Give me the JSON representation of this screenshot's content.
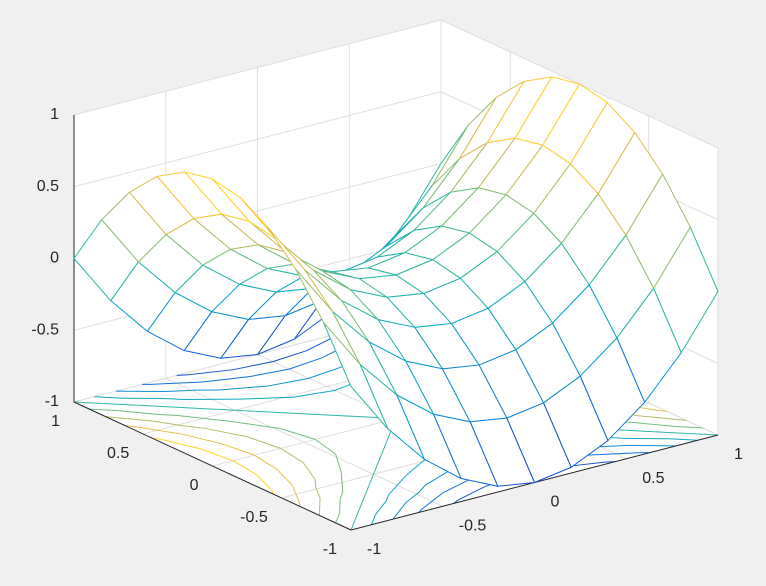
{
  "chart_data": {
    "type": "mesh",
    "x": [
      -1,
      -0.8,
      -0.6,
      -0.4,
      -0.2,
      0,
      0.2,
      0.4,
      0.6,
      0.8,
      1
    ],
    "y": [
      -1,
      -0.8,
      -0.6,
      -0.4,
      -0.2,
      0,
      0.2,
      0.4,
      0.6,
      0.8,
      1
    ],
    "z": [
      [
        0,
        -0.36,
        -0.64,
        -0.84,
        -0.96,
        -1,
        -0.96,
        -0.84,
        -0.64,
        -0.36,
        0
      ],
      [
        0.36,
        0,
        -0.28,
        -0.48,
        -0.6,
        -0.64,
        -0.6,
        -0.48,
        -0.28,
        0,
        0.36
      ],
      [
        0.64,
        0.28,
        0,
        -0.2,
        -0.32,
        -0.36,
        -0.32,
        -0.2,
        0,
        0.28,
        0.64
      ],
      [
        0.84,
        0.48,
        0.2,
        0,
        -0.12,
        -0.16,
        -0.12,
        0,
        0.2,
        0.48,
        0.84
      ],
      [
        0.96,
        0.6,
        0.32,
        0.12,
        0,
        -0.04,
        0,
        0.12,
        0.32,
        0.6,
        0.96
      ],
      [
        1,
        0.64,
        0.36,
        0.16,
        0.04,
        0,
        0.04,
        0.16,
        0.36,
        0.64,
        1
      ],
      [
        0.96,
        0.6,
        0.32,
        0.12,
        0,
        -0.04,
        0,
        0.12,
        0.32,
        0.6,
        0.96
      ],
      [
        0.84,
        0.48,
        0.2,
        0,
        -0.12,
        -0.16,
        -0.12,
        0,
        0.2,
        0.48,
        0.84
      ],
      [
        0.64,
        0.28,
        0,
        -0.2,
        -0.32,
        -0.36,
        -0.32,
        -0.2,
        0,
        0.28,
        0.64
      ],
      [
        0.36,
        0,
        -0.28,
        -0.48,
        -0.6,
        -0.64,
        -0.6,
        -0.48,
        -0.28,
        0,
        0.36
      ],
      [
        0,
        -0.36,
        -0.64,
        -0.84,
        -0.96,
        -1,
        -0.96,
        -0.84,
        -0.64,
        -0.36,
        0
      ]
    ],
    "xlim": [
      -1,
      1
    ],
    "ylim": [
      -1,
      1
    ],
    "zlim": [
      -1,
      1
    ],
    "xticks": [
      -1,
      -0.5,
      0,
      0.5,
      1
    ],
    "yticks": [
      -1,
      -0.5,
      0,
      0.5,
      1
    ],
    "zticks": [
      -1,
      -0.5,
      0,
      0.5,
      1
    ],
    "grid": true,
    "contour_levels": [
      -0.8,
      -0.6,
      -0.4,
      -0.2,
      0,
      0.2,
      0.4,
      0.6,
      0.8
    ],
    "colormap": [
      "#352a87",
      "#0f5cdd",
      "#1481d6",
      "#06a4ca",
      "#2eb7a4",
      "#87bf77",
      "#d1bb59",
      "#fec832",
      "#f9fb0e"
    ]
  }
}
